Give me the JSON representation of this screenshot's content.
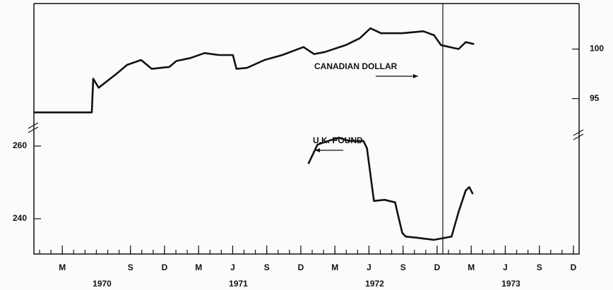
{
  "chart_data": {
    "type": "line",
    "categories_secondary": [
      "1970",
      "1971",
      "1972",
      "1973"
    ],
    "annotations": [
      "CANADIAN DOLLAR",
      "U.K. POUND"
    ],
    "series": [
      {
        "name": "CANADIAN DOLLAR",
        "color": "#111111",
        "axis": "y2",
        "x": [
          -0.5,
          4.6,
          4.72,
          5.2,
          6.77,
          7.7,
          8.94,
          9.88,
          11.43,
          12.05,
          13.29,
          14.53,
          15.78,
          17.02,
          17.33,
          18.26,
          19.81,
          21.37,
          23.23,
          24.16,
          25.09,
          26.96,
          28.2,
          29.13,
          30.06,
          31.93,
          33.79,
          34.72,
          35.34,
          36.89,
          37.52,
          38.26
        ],
        "values": [
          93.6,
          93.6,
          97.0,
          96.1,
          97.5,
          98.4,
          98.9,
          98.0,
          98.2,
          98.8,
          99.1,
          99.6,
          99.4,
          99.4,
          98.0,
          98.1,
          98.9,
          99.4,
          100.2,
          99.5,
          99.7,
          100.4,
          101.1,
          102.1,
          101.6,
          101.6,
          101.8,
          101.4,
          100.4,
          100.0,
          100.7,
          100.5
        ]
      },
      {
        "name": "U.K. POUND",
        "color": "#111111",
        "axis": "y",
        "x": [
          23.66,
          24.47,
          25.71,
          26.34,
          27.27,
          28.51,
          28.82,
          29.44,
          30.37,
          31.3,
          31.49,
          31.93,
          32.24,
          33.17,
          34.72,
          36.27,
          36.89,
          37.52,
          37.83,
          38.14
        ],
        "values": [
          255.1,
          260.4,
          261.7,
          262.3,
          261.4,
          261.4,
          259.4,
          244.9,
          245.2,
          244.5,
          241.9,
          236.1,
          235.1,
          234.8,
          234.2,
          235.1,
          241.9,
          247.8,
          248.7,
          246.8
        ]
      }
    ],
    "xlim": [
      -0.5,
      47.5
    ],
    "xticks": [
      {
        "value": 2,
        "label": "M"
      },
      {
        "value": 8,
        "label": "S"
      },
      {
        "value": 11,
        "label": "D"
      },
      {
        "value": 14,
        "label": "M"
      },
      {
        "value": 17,
        "label": "J"
      },
      {
        "value": 20,
        "label": "S"
      },
      {
        "value": 23,
        "label": "D"
      },
      {
        "value": 26,
        "label": "M"
      },
      {
        "value": 29,
        "label": "J"
      },
      {
        "value": 32,
        "label": "S"
      },
      {
        "value": 35,
        "label": "D"
      },
      {
        "value": 38,
        "label": "M"
      },
      {
        "value": 41,
        "label": "J"
      },
      {
        "value": 44,
        "label": "S"
      },
      {
        "value": 47,
        "label": "D"
      }
    ],
    "ylim": [
      230.3,
      299.2
    ],
    "yticks": [
      240,
      260
    ],
    "y2lim": [
      79.3,
      104.6
    ],
    "y2ticks": [
      95,
      100
    ],
    "reference_lines": [
      35.5
    ],
    "grid": false
  }
}
